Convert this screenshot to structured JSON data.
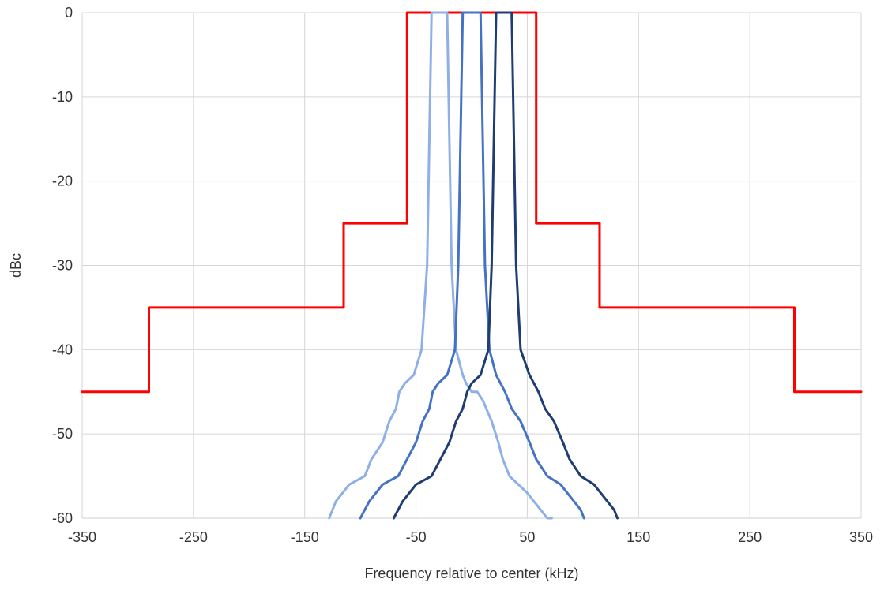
{
  "chart_data": {
    "type": "line",
    "title": "",
    "xlabel": "Frequency relative to center (kHz)",
    "ylabel": "dBc",
    "xlim": [
      -350,
      350
    ],
    "ylim": [
      -60,
      0
    ],
    "xticks": [
      -350,
      -250,
      -150,
      -50,
      50,
      150,
      250,
      350
    ],
    "yticks": [
      0,
      -10,
      -20,
      -30,
      -40,
      -50,
      -60
    ],
    "grid": true,
    "legend": "none",
    "colors": {
      "mask": "#ff0000",
      "spectrum_left": "#8fb0e6",
      "spectrum_center": "#4472c4",
      "spectrum_right": "#1f3d73"
    },
    "series": [
      {
        "color": "#ff0000",
        "width": 3,
        "x": [
          -350,
          -290,
          -290,
          -115,
          -115,
          -58,
          -58,
          58,
          58,
          115,
          115,
          290,
          290,
          350
        ],
        "y": [
          -45,
          -45,
          -35,
          -35,
          -25,
          -25,
          0,
          0,
          -25,
          -25,
          -35,
          -35,
          -45,
          -45
        ]
      },
      {
        "color": "#8fb0e6",
        "width": 3,
        "x": [
          -128,
          -122,
          -110,
          -96,
          -90,
          -80,
          -74,
          -68,
          -65,
          -60,
          -52,
          -45,
          -40,
          -38,
          -36,
          -22,
          -20,
          -18,
          -14,
          -8,
          -5,
          0,
          5,
          10,
          18,
          24,
          28,
          34,
          42,
          50,
          56,
          62,
          68,
          72
        ],
        "y": [
          -60,
          -58,
          -56,
          -55,
          -53,
          -51,
          -48.5,
          -47,
          -45,
          -44,
          -43,
          -40,
          -30,
          -15,
          0,
          0,
          -15,
          -30,
          -40,
          -43,
          -44,
          -45,
          -45,
          -46,
          -48.5,
          -51,
          -53,
          -55,
          -56,
          -57,
          -58,
          -59,
          -60,
          -60
        ]
      },
      {
        "color": "#4472c4",
        "width": 3,
        "x": [
          -100,
          -92,
          -80,
          -66,
          -58,
          -50,
          -44,
          -38,
          -35,
          -30,
          -22,
          -15,
          -12,
          -10,
          -8,
          8,
          10,
          12,
          16,
          22,
          26,
          30,
          36,
          44,
          52,
          58,
          68,
          80,
          92,
          98,
          101
        ],
        "y": [
          -60,
          -58,
          -56,
          -55,
          -53,
          -51,
          -48.5,
          -47,
          -45,
          -44,
          -43,
          -40,
          -30,
          -15,
          0,
          0,
          -15,
          -30,
          -40,
          -43,
          -44,
          -45,
          -47,
          -48.5,
          -51,
          -53,
          -55,
          -56,
          -58,
          -59,
          -60
        ]
      },
      {
        "color": "#1f3d73",
        "width": 3,
        "x": [
          -70,
          -62,
          -50,
          -36,
          -28,
          -20,
          -14,
          -8,
          -4,
          0,
          8,
          15,
          18,
          20,
          22,
          36,
          38,
          40,
          44,
          52,
          56,
          60,
          66,
          74,
          82,
          88,
          98,
          110,
          122,
          128,
          131
        ],
        "y": [
          -60,
          -58,
          -56,
          -55,
          -53,
          -51,
          -48.5,
          -47,
          -45,
          -44,
          -43,
          -40,
          -30,
          -15,
          0,
          0,
          -15,
          -30,
          -40,
          -43,
          -44,
          -45,
          -47,
          -48.5,
          -51,
          -53,
          -55,
          -56,
          -58,
          -59,
          -60
        ]
      }
    ]
  }
}
